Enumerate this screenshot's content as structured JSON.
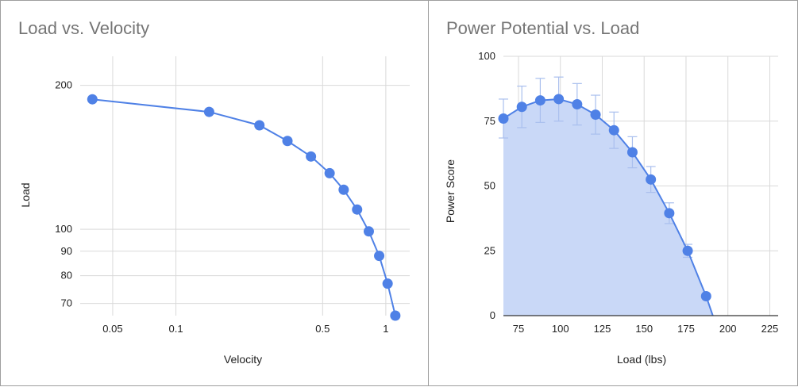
{
  "chart_data": [
    {
      "type": "line",
      "title": "Load vs. Velocity",
      "xlabel": "Velocity",
      "ylabel": "Load",
      "xscale": "log",
      "yscale": "log",
      "xlim": [
        0.035,
        1.3
      ],
      "ylim": [
        66,
        230
      ],
      "xticks": [
        {
          "v": 0.05,
          "label": "0.05"
        },
        {
          "v": 0.1,
          "label": "0.1"
        },
        {
          "v": 0.5,
          "label": "0.5"
        },
        {
          "v": 1,
          "label": "1"
        }
      ],
      "yticks": [
        {
          "v": 70,
          "label": "70"
        },
        {
          "v": 80,
          "label": "80"
        },
        {
          "v": 90,
          "label": "90"
        },
        {
          "v": 100,
          "label": "100"
        },
        {
          "v": 200,
          "label": "200"
        }
      ],
      "grid": true,
      "color": "#4f81e6",
      "series": [
        {
          "x": [
            0.04,
            0.144,
            0.25,
            0.34,
            0.44,
            0.54,
            0.63,
            0.73,
            0.83,
            0.93,
            1.02,
            1.11
          ],
          "y": [
            187,
            176,
            165,
            153,
            142,
            131,
            121,
            110,
            99,
            88,
            77,
            66
          ]
        }
      ]
    },
    {
      "type": "area",
      "title": "Power Potential vs. Load",
      "xlabel": "Load (lbs)",
      "ylabel": "Power Score",
      "xlim": [
        66,
        230
      ],
      "ylim": [
        0,
        100
      ],
      "xticks": [
        {
          "v": 75,
          "label": "75"
        },
        {
          "v": 100,
          "label": "100"
        },
        {
          "v": 125,
          "label": "125"
        },
        {
          "v": 150,
          "label": "150"
        },
        {
          "v": 175,
          "label": "175"
        },
        {
          "v": 200,
          "label": "200"
        },
        {
          "v": 225,
          "label": "225"
        }
      ],
      "yticks": [
        {
          "v": 0,
          "label": "0"
        },
        {
          "v": 25,
          "label": "25"
        },
        {
          "v": 50,
          "label": "50"
        },
        {
          "v": 75,
          "label": "75"
        },
        {
          "v": 100,
          "label": "100"
        }
      ],
      "grid": true,
      "color": "#4f81e6",
      "fill_color": "#c9d8f7",
      "error_color": "#a9bfee",
      "series": [
        {
          "x": [
            66,
            77,
            88,
            99,
            110,
            121,
            132,
            143,
            154,
            165,
            176,
            187
          ],
          "y": [
            76,
            80.5,
            83,
            83.5,
            81.5,
            77.5,
            71.5,
            63,
            52.5,
            39.5,
            25,
            7.5
          ],
          "error": [
            7.5,
            8,
            8.5,
            8.5,
            8,
            7.5,
            7,
            6,
            5,
            4,
            2.5,
            0
          ],
          "curve_end": [
            191,
            0
          ]
        }
      ]
    }
  ]
}
